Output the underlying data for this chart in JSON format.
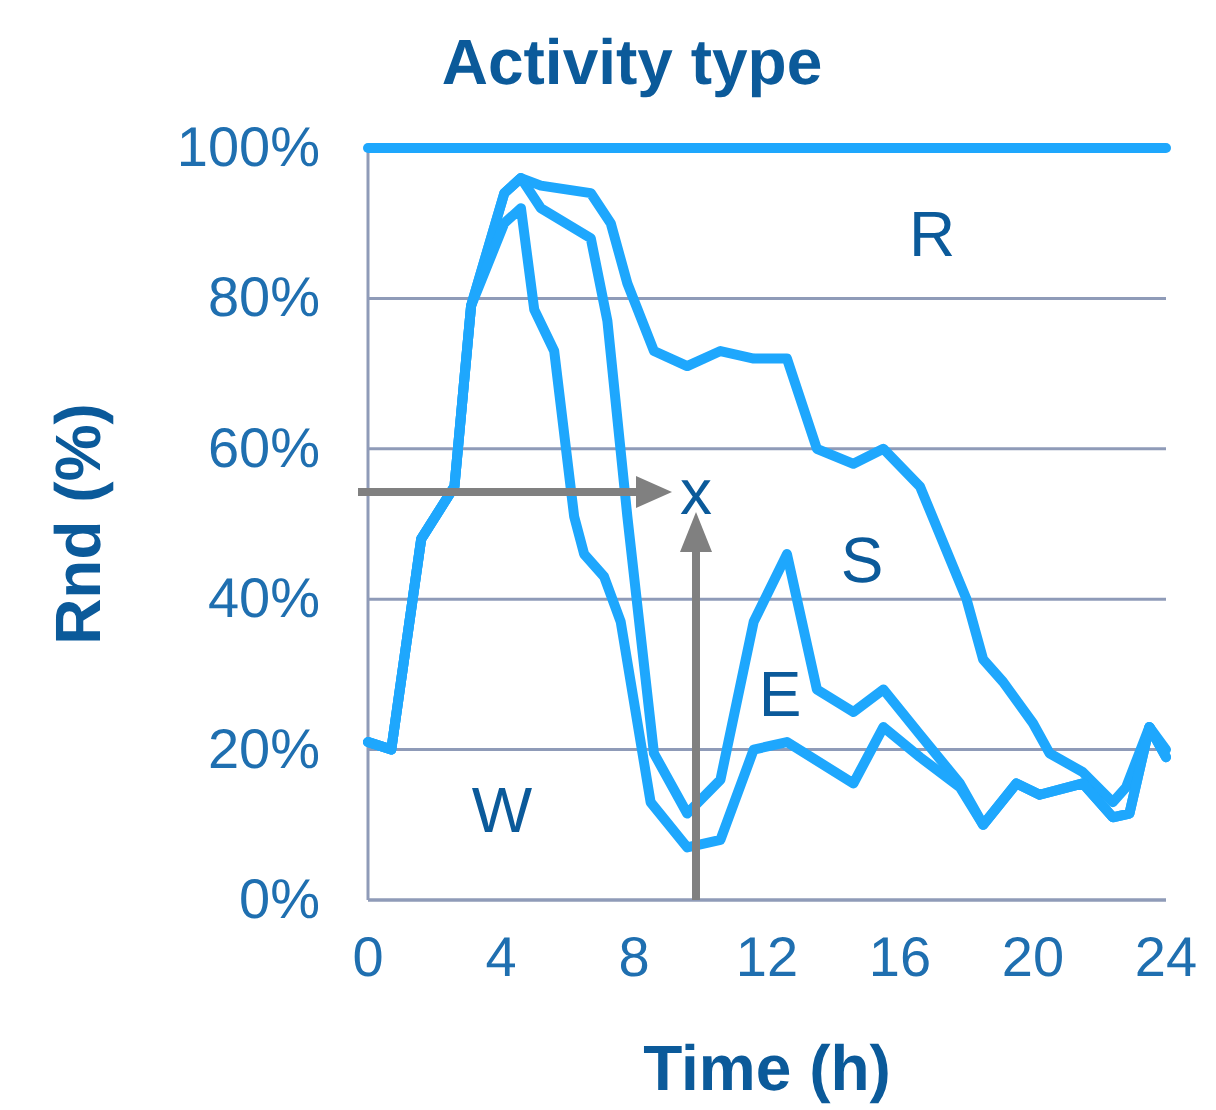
{
  "chart_data": {
    "type": "line",
    "title": "Activity type",
    "xlabel": "Time (h)",
    "ylabel": "Rnd (%)",
    "xlim": [
      0,
      24
    ],
    "xticks": [
      0,
      4,
      8,
      12,
      16,
      20,
      24
    ],
    "ylim": [
      0,
      100
    ],
    "yticks": [
      {
        "value": 0,
        "label": "0%"
      },
      {
        "value": 20,
        "label": "20%"
      },
      {
        "value": 40,
        "label": "40%"
      },
      {
        "value": 60,
        "label": "60%"
      },
      {
        "value": 80,
        "label": "80%"
      },
      {
        "value": 100,
        "label": "100%"
      }
    ],
    "grid": "y",
    "marker": "none",
    "line_style": "solid",
    "series": [
      {
        "color": "#1ea7fd",
        "x": [
          0,
          0.7,
          1.6,
          2.6,
          3.1,
          4.1,
          4.6,
          5.2,
          6.7,
          7.3,
          7.8,
          8.6,
          9.6,
          10.6,
          11.6,
          12.6,
          13.5,
          14.6,
          15.5,
          16.6,
          18,
          18.5,
          19.1,
          20,
          20.5,
          21.5,
          22.4,
          22.8,
          23.5,
          24
        ],
        "values": [
          21,
          20,
          48,
          55,
          79,
          94,
          96,
          95,
          94,
          90,
          82,
          73,
          71,
          73,
          72,
          72,
          60,
          58,
          60,
          55,
          40,
          32,
          29,
          23.5,
          19.5,
          17,
          13,
          15,
          23,
          20
        ]
      },
      {
        "color": "#1ea7fd",
        "x": [
          0,
          0.7,
          1.6,
          2.6,
          3.1,
          4.1,
          4.6,
          5.2,
          6.7,
          7.2,
          7.8,
          8.6,
          9.6,
          10.6,
          11.6,
          12.6,
          13.5,
          14.6,
          15.5,
          16.6,
          17.8,
          18.5,
          19.5,
          20.2,
          21.5,
          22.4,
          22.9,
          23.5,
          24
        ],
        "values": [
          21,
          20,
          48,
          55,
          79,
          94,
          96,
          92,
          88,
          77,
          51,
          19.5,
          11.5,
          16,
          37,
          46,
          28,
          25,
          28,
          22,
          15.5,
          10,
          15.5,
          14,
          15.5,
          11,
          11.5,
          23,
          19
        ]
      },
      {
        "color": "#1ea7fd",
        "x": [
          0,
          0.7,
          1.6,
          2.6,
          3.1,
          4.1,
          4.6,
          5,
          5.6,
          6.2,
          6.5,
          7.1,
          7.6,
          8.5,
          9.6,
          10.6,
          11.6,
          12.6,
          14.6,
          15.5,
          16.6,
          17.8,
          18.5,
          19.5,
          20.2,
          21.5,
          22.4,
          22.9,
          23.5,
          24
        ],
        "values": [
          21,
          20,
          48,
          55,
          79,
          90,
          92,
          78.5,
          73,
          51,
          46,
          43,
          37,
          13,
          7,
          8,
          20,
          21,
          15.5,
          23,
          19,
          15,
          10,
          15.5,
          14,
          15.5,
          11,
          11.5,
          23,
          19
        ]
      },
      {
        "color": "#1ea7fd",
        "x": [
          0,
          24
        ],
        "values": [
          100,
          100
        ]
      }
    ],
    "annotations": [
      "x",
      "W",
      "E",
      "S",
      "R"
    ]
  }
}
